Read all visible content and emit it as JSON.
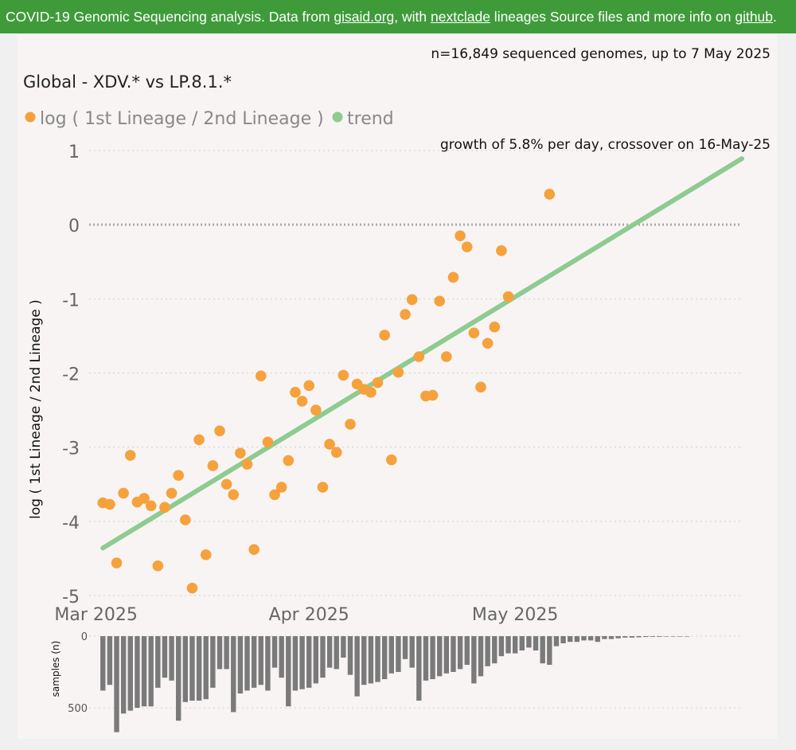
{
  "banner": {
    "text1": "COVID-19 Genomic Sequencing analysis. Data from ",
    "link1": "gisaid.org",
    "text2": ", with ",
    "link2": "nextclade",
    "text3": " lineages Source files and more info on ",
    "link3": "github",
    "text4": "."
  },
  "header": {
    "sample_note": "n=16,849 sequenced genomes, up to 7 May 2025",
    "title": "Global - XDV.* vs LP.8.1.*",
    "growth_note": "growth of 5.8% per day, crossover on 16-May-25"
  },
  "colors": {
    "banner": "#3f9b3a",
    "points": "#f5a23c",
    "trend": "#8ecb90",
    "bars": "#7a7a7a",
    "zero_line": "#aaaaaa"
  },
  "chart_data": [
    {
      "type": "scatter",
      "legend": [
        "log ( 1st Lineage / 2nd Lineage )",
        "trend"
      ],
      "legend_position": "top-left",
      "ylabel": "log ( 1st Lineage / 2nd Lineage )",
      "ylim": [
        -5,
        1
      ],
      "yticks": [
        1,
        0,
        -1,
        -2,
        -3,
        -4,
        -5
      ],
      "xlim": [
        "2025-02-28",
        "2025-06-03"
      ],
      "xticks": [
        {
          "date": "2025-03-01",
          "label": "Mar 2025"
        },
        {
          "date": "2025-04-01",
          "label": "Apr 2025"
        },
        {
          "date": "2025-05-01",
          "label": "May 2025"
        }
      ],
      "grid": true,
      "points": [
        {
          "date": "2025-03-02",
          "y": -3.75
        },
        {
          "date": "2025-03-03",
          "y": -3.77
        },
        {
          "date": "2025-03-04",
          "y": -4.56
        },
        {
          "date": "2025-03-05",
          "y": -3.62
        },
        {
          "date": "2025-03-06",
          "y": -3.11
        },
        {
          "date": "2025-03-07",
          "y": -3.74
        },
        {
          "date": "2025-03-08",
          "y": -3.69
        },
        {
          "date": "2025-03-09",
          "y": -3.79
        },
        {
          "date": "2025-03-10",
          "y": -4.6
        },
        {
          "date": "2025-03-11",
          "y": -3.81
        },
        {
          "date": "2025-03-12",
          "y": -3.62
        },
        {
          "date": "2025-03-13",
          "y": -3.38
        },
        {
          "date": "2025-03-14",
          "y": -3.98
        },
        {
          "date": "2025-03-15",
          "y": -4.9
        },
        {
          "date": "2025-03-16",
          "y": -2.9
        },
        {
          "date": "2025-03-17",
          "y": -4.45
        },
        {
          "date": "2025-03-18",
          "y": -3.25
        },
        {
          "date": "2025-03-19",
          "y": -2.78
        },
        {
          "date": "2025-03-20",
          "y": -3.5
        },
        {
          "date": "2025-03-21",
          "y": -3.64
        },
        {
          "date": "2025-03-22",
          "y": -3.08
        },
        {
          "date": "2025-03-23",
          "y": -3.23
        },
        {
          "date": "2025-03-24",
          "y": -4.38
        },
        {
          "date": "2025-03-25",
          "y": -2.04
        },
        {
          "date": "2025-03-26",
          "y": -2.93
        },
        {
          "date": "2025-03-27",
          "y": -3.64
        },
        {
          "date": "2025-03-28",
          "y": -3.54
        },
        {
          "date": "2025-03-29",
          "y": -3.18
        },
        {
          "date": "2025-03-30",
          "y": -2.26
        },
        {
          "date": "2025-03-31",
          "y": -2.38
        },
        {
          "date": "2025-04-01",
          "y": -2.17
        },
        {
          "date": "2025-04-02",
          "y": -2.5
        },
        {
          "date": "2025-04-03",
          "y": -3.54
        },
        {
          "date": "2025-04-04",
          "y": -2.96
        },
        {
          "date": "2025-04-05",
          "y": -3.07
        },
        {
          "date": "2025-04-06",
          "y": -2.03
        },
        {
          "date": "2025-04-07",
          "y": -2.69
        },
        {
          "date": "2025-04-08",
          "y": -2.15
        },
        {
          "date": "2025-04-09",
          "y": -2.22
        },
        {
          "date": "2025-04-10",
          "y": -2.26
        },
        {
          "date": "2025-04-11",
          "y": -2.13
        },
        {
          "date": "2025-04-12",
          "y": -1.49
        },
        {
          "date": "2025-04-13",
          "y": -3.17
        },
        {
          "date": "2025-04-14",
          "y": -1.99
        },
        {
          "date": "2025-04-15",
          "y": -1.21
        },
        {
          "date": "2025-04-16",
          "y": -1.01
        },
        {
          "date": "2025-04-17",
          "y": -1.78
        },
        {
          "date": "2025-04-18",
          "y": -2.31
        },
        {
          "date": "2025-04-19",
          "y": -2.3
        },
        {
          "date": "2025-04-20",
          "y": -1.03
        },
        {
          "date": "2025-04-21",
          "y": -1.78
        },
        {
          "date": "2025-04-22",
          "y": -0.71
        },
        {
          "date": "2025-04-23",
          "y": -0.15
        },
        {
          "date": "2025-04-24",
          "y": -0.3
        },
        {
          "date": "2025-04-25",
          "y": -1.46
        },
        {
          "date": "2025-04-26",
          "y": -2.19
        },
        {
          "date": "2025-04-27",
          "y": -1.6
        },
        {
          "date": "2025-04-28",
          "y": -1.38
        },
        {
          "date": "2025-04-29",
          "y": -0.35
        },
        {
          "date": "2025-04-30",
          "y": -0.97
        },
        {
          "date": "2025-05-06",
          "y": 0.41
        }
      ],
      "trend": [
        {
          "date": "2025-03-02",
          "y": -4.36
        },
        {
          "date": "2025-06-03",
          "y": 0.89
        }
      ]
    },
    {
      "type": "bar",
      "ylabel": "samples (n)",
      "ylim": [
        0,
        700
      ],
      "yticks": [
        0,
        500
      ],
      "inverted": true,
      "x_start": "2025-03-02",
      "values": [
        380,
        340,
        670,
        540,
        520,
        500,
        490,
        490,
        360,
        290,
        310,
        590,
        460,
        450,
        450,
        440,
        360,
        230,
        230,
        530,
        400,
        380,
        360,
        340,
        380,
        220,
        290,
        490,
        380,
        370,
        360,
        330,
        290,
        220,
        230,
        150,
        270,
        420,
        340,
        330,
        320,
        300,
        260,
        250,
        160,
        220,
        450,
        310,
        300,
        280,
        260,
        250,
        230,
        200,
        330,
        280,
        210,
        190,
        140,
        120,
        120,
        100,
        80,
        100,
        190,
        200,
        70,
        50,
        40,
        40,
        30,
        30,
        40,
        20,
        20,
        15,
        10,
        10,
        8,
        6,
        5,
        5,
        3,
        2,
        2,
        1
      ]
    }
  ]
}
